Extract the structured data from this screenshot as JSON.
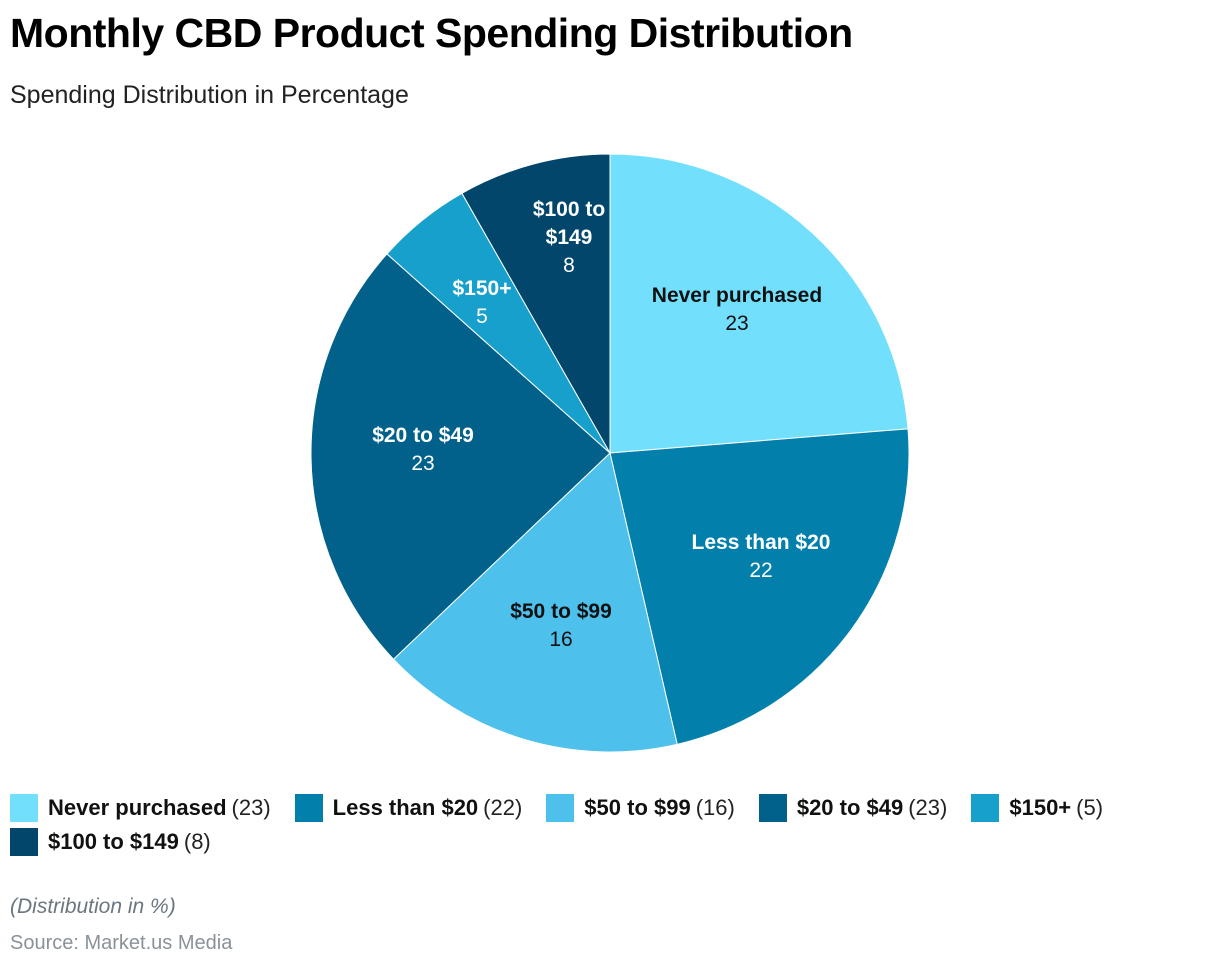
{
  "chart_data": {
    "type": "pie",
    "title": "Monthly CBD Product Spending Distribution",
    "subtitle": "Spending Distribution in Percentage",
    "start_angle": "top, clockwise",
    "slices": [
      {
        "label": "Never purchased",
        "label_lines": [
          "Never purchased"
        ],
        "value": 23,
        "color": "#72e0fd",
        "text_color": "#111111"
      },
      {
        "label": "Less than $20",
        "label_lines": [
          "Less than $20"
        ],
        "value": 22,
        "color": "#0280ab",
        "text_color": "#ffffff"
      },
      {
        "label": "$50 to $99",
        "label_lines": [
          "$50 to $99"
        ],
        "value": 16,
        "color": "#4ec0ec",
        "text_color": "#111111"
      },
      {
        "label": "$20 to $49",
        "label_lines": [
          "$20 to $49"
        ],
        "value": 23,
        "color": "#01618a",
        "text_color": "#ffffff"
      },
      {
        "label": "$150+",
        "label_lines": [
          "$150+"
        ],
        "value": 5,
        "color": "#18a0cc",
        "text_color": "#ffffff"
      },
      {
        "label": "$100 to $149",
        "label_lines": [
          "$100 to",
          "$149"
        ],
        "value": 8,
        "color": "#02476b",
        "text_color": "#ffffff"
      }
    ],
    "legend_placement": "bottom",
    "note": "(Distribution in %)",
    "source": "Source: Market.us Media"
  }
}
